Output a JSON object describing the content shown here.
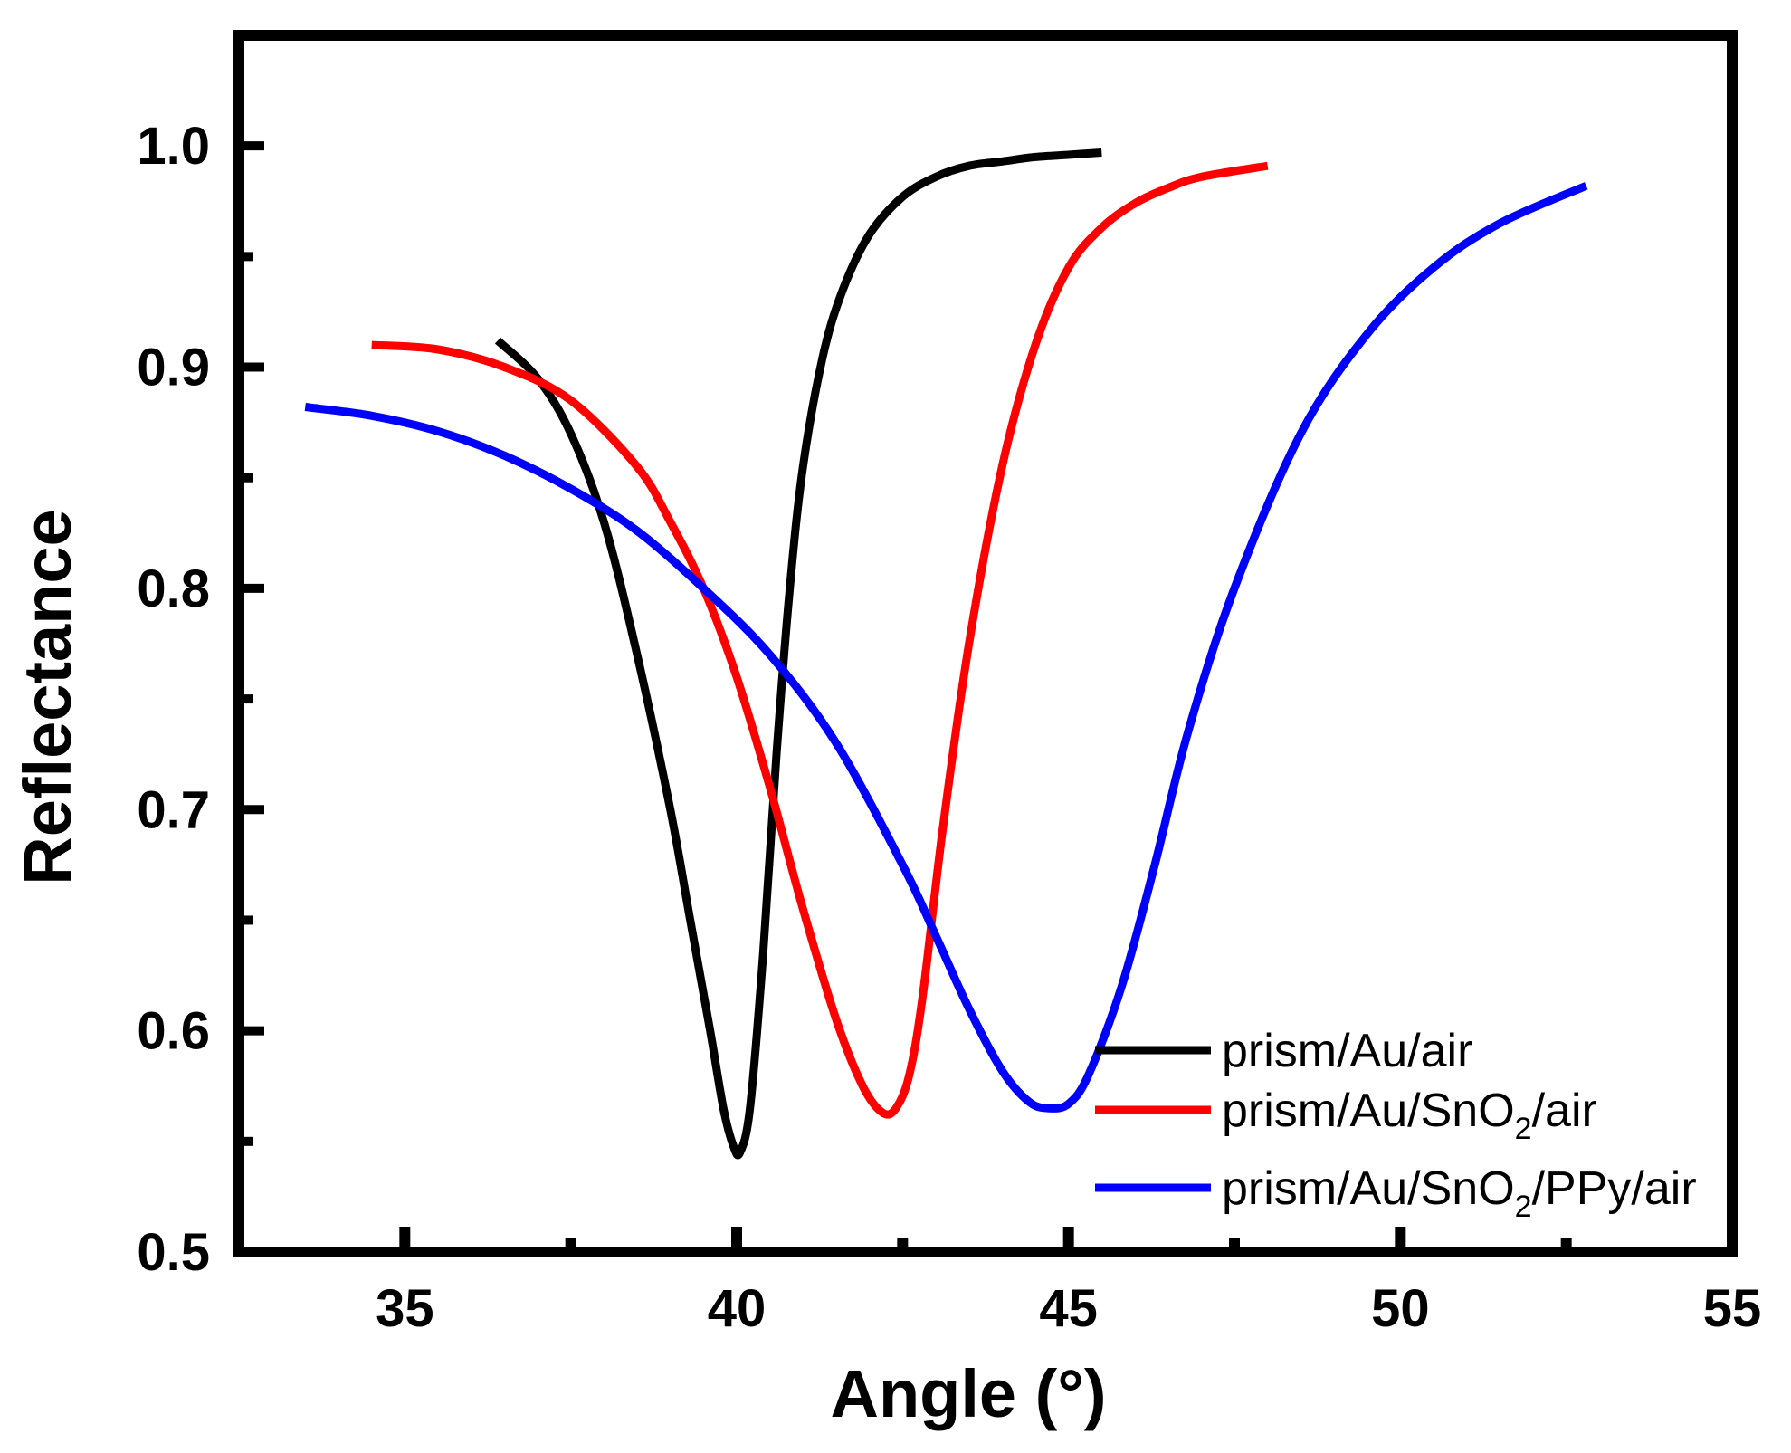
{
  "chart_data": {
    "type": "line",
    "title": "",
    "xlabel": "Angle (°)",
    "ylabel": "Reflectance",
    "xlim": [
      32.5,
      55
    ],
    "ylim": [
      0.5,
      1.05
    ],
    "x_ticks": [
      "35",
      "40",
      "45",
      "50",
      "55"
    ],
    "y_ticks": [
      "0.5",
      "0.6",
      "0.7",
      "0.8",
      "0.9",
      "1.0"
    ],
    "grid": false,
    "legend_position": "bottom-right",
    "series": [
      {
        "name": "prism/Au/air",
        "color": "#000000",
        "x": [
          36.4,
          37.0,
          37.5,
          38.0,
          38.5,
          39.0,
          39.3,
          39.6,
          39.8,
          39.95,
          40.05,
          40.2,
          40.4,
          40.6,
          40.8,
          41.0,
          41.3,
          41.6,
          42.0,
          42.5,
          43.0,
          43.5,
          44.0,
          44.5,
          45.0,
          45.5
        ],
        "y": [
          0.912,
          0.895,
          0.87,
          0.83,
          0.77,
          0.7,
          0.65,
          0.6,
          0.565,
          0.548,
          0.545,
          0.565,
          0.635,
          0.725,
          0.8,
          0.855,
          0.905,
          0.935,
          0.96,
          0.977,
          0.986,
          0.991,
          0.993,
          0.995,
          0.996,
          0.997
        ]
      },
      {
        "name": "prism/Au/SnO2/air",
        "color": "#ff0000",
        "x": [
          34.5,
          35.5,
          36.5,
          37.5,
          38.5,
          39.0,
          39.5,
          40.0,
          40.5,
          41.0,
          41.5,
          41.9,
          42.2,
          42.4,
          42.6,
          42.8,
          43.1,
          43.5,
          44.0,
          44.5,
          45.0,
          45.5,
          46.0,
          46.5,
          47.0,
          48.0
        ],
        "y": [
          0.91,
          0.908,
          0.9,
          0.885,
          0.855,
          0.83,
          0.8,
          0.76,
          0.71,
          0.655,
          0.605,
          0.575,
          0.563,
          0.565,
          0.58,
          0.615,
          0.69,
          0.775,
          0.855,
          0.91,
          0.945,
          0.963,
          0.974,
          0.981,
          0.986,
          0.991
        ]
      },
      {
        "name": "prism/Au/SnO2/PPy/air",
        "color": "#0000ff",
        "x": [
          33.5,
          34.5,
          35.5,
          36.5,
          37.5,
          38.5,
          39.5,
          40.5,
          41.5,
          42.5,
          43.0,
          43.5,
          44.0,
          44.4,
          44.7,
          45.0,
          45.3,
          45.8,
          46.3,
          46.8,
          47.5,
          48.5,
          49.5,
          50.5,
          51.5,
          52.8
        ],
        "y": [
          0.882,
          0.878,
          0.871,
          0.86,
          0.845,
          0.826,
          0.8,
          0.77,
          0.73,
          0.675,
          0.643,
          0.61,
          0.582,
          0.568,
          0.565,
          0.567,
          0.58,
          0.62,
          0.675,
          0.735,
          0.8,
          0.87,
          0.915,
          0.945,
          0.965,
          0.982
        ]
      }
    ]
  },
  "legend": {
    "items": [
      {
        "base": "prism/Au/air",
        "sub": "",
        "tail": ""
      },
      {
        "base": "prism/Au/SnO",
        "sub": "2",
        "tail": "/air"
      },
      {
        "base": "prism/Au/SnO",
        "sub": "2",
        "tail": "/PPy/air"
      }
    ]
  }
}
